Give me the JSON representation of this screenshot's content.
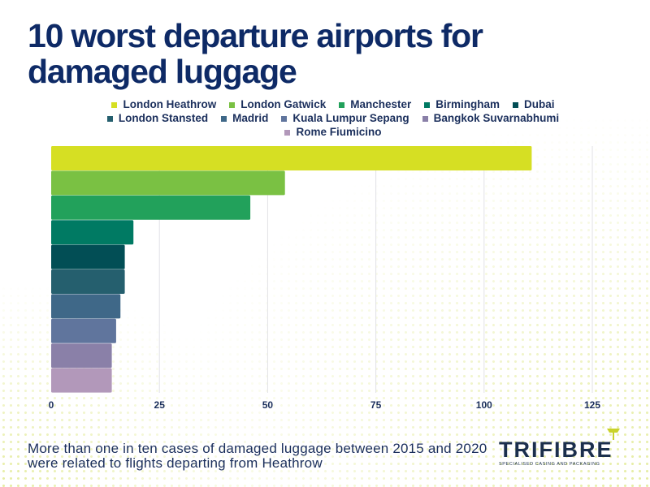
{
  "title": "10 worst departure airports for damaged luggage",
  "caption": "More than one in ten cases of damaged luggage between 2015 and 2020 were related to flights departing from Heathrow",
  "logo": {
    "name": "TRIFIBRE",
    "tagline": "SPECIALISED CASING AND PACKAGING"
  },
  "chart_data": {
    "type": "bar",
    "orientation": "horizontal",
    "title": "10 worst departure airports for damaged luggage",
    "xlim": [
      0,
      125
    ],
    "xticks": [
      "0",
      "25",
      "50",
      "75",
      "100",
      "125"
    ],
    "grid": true,
    "legend_placement": "top",
    "series": [
      {
        "name": "London Heathrow",
        "value": 111,
        "color": "#d6df23"
      },
      {
        "name": "London Gatwick",
        "value": 54,
        "color": "#7ac143"
      },
      {
        "name": "Manchester",
        "value": 46,
        "color": "#22a15b"
      },
      {
        "name": "Birmingham",
        "value": 19,
        "color": "#007a63"
      },
      {
        "name": "Dubai",
        "value": 17,
        "color": "#024e55"
      },
      {
        "name": "London Stansted",
        "value": 17,
        "color": "#255f6e"
      },
      {
        "name": "Madrid",
        "value": 16,
        "color": "#3f6888"
      },
      {
        "name": "Kuala Lumpur Sepang",
        "value": 15,
        "color": "#60759d"
      },
      {
        "name": "Bangkok Suvarnabhumi",
        "value": 14,
        "color": "#8a80a8"
      },
      {
        "name": "Rome Fiumicino",
        "value": 14,
        "color": "#b298ba"
      }
    ]
  }
}
